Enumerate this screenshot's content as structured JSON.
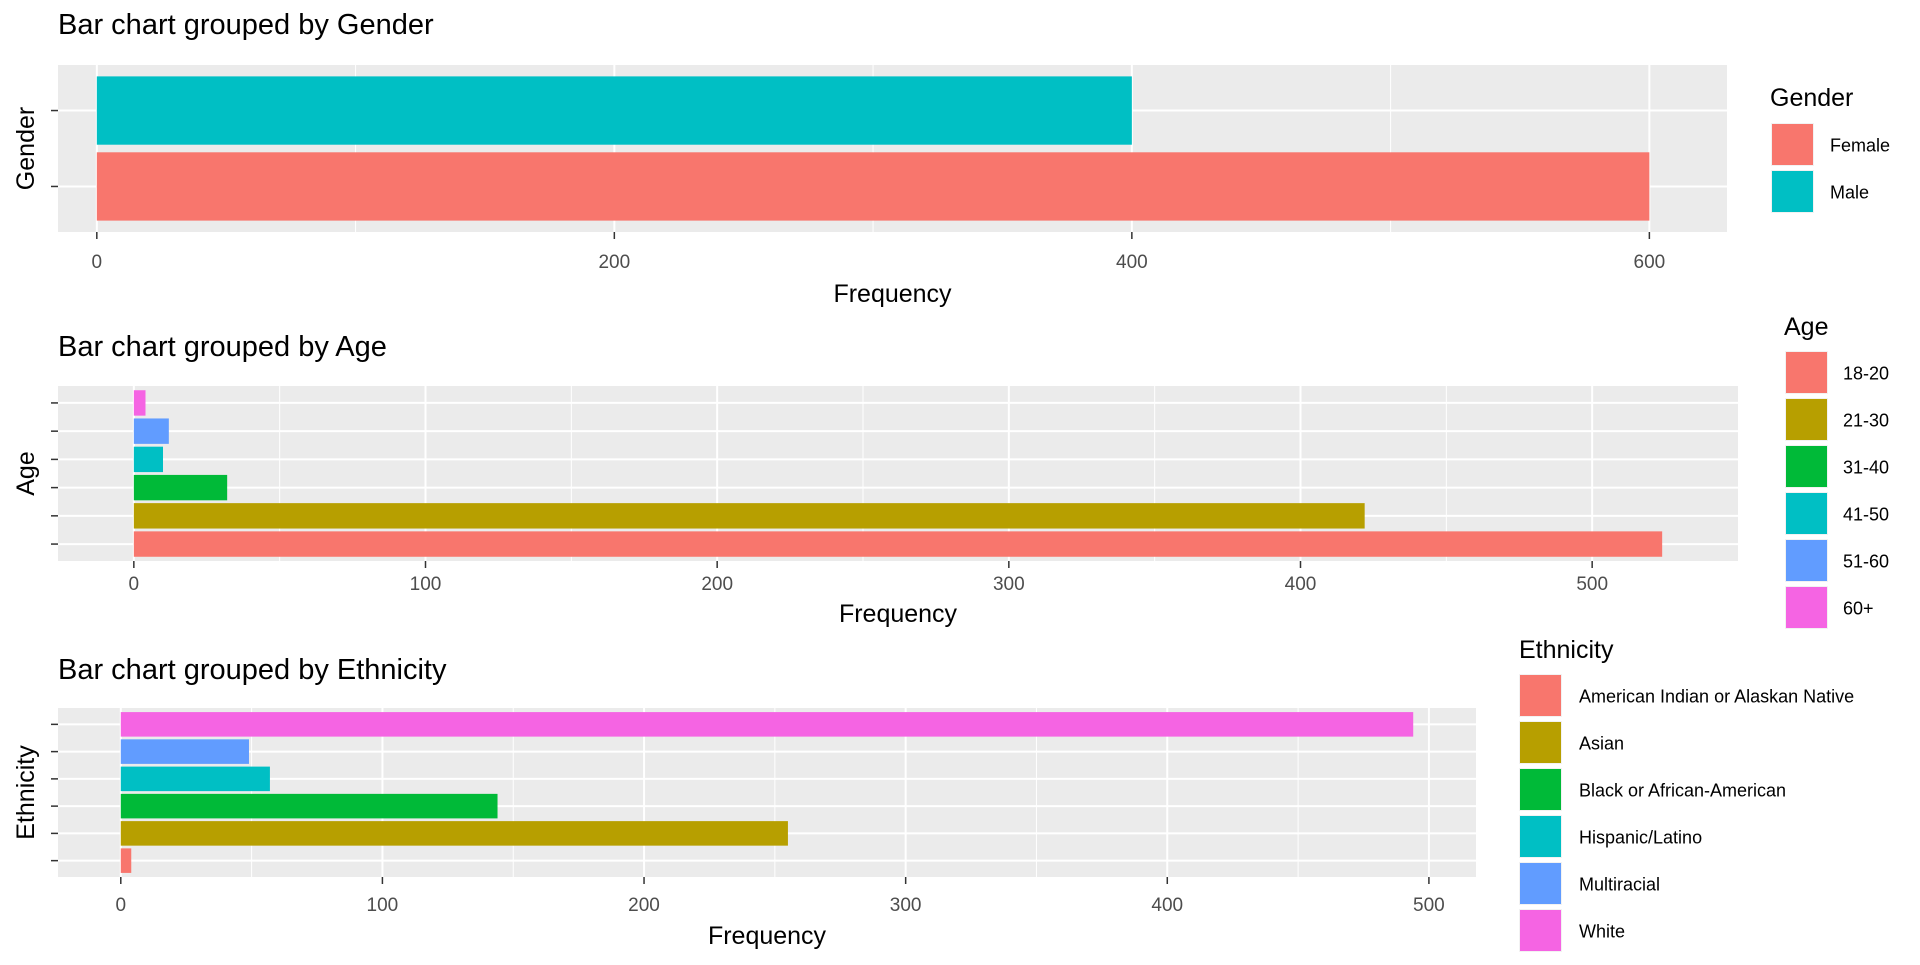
{
  "chart_data": [
    {
      "type": "bar",
      "orientation": "horizontal",
      "title": "Bar chart grouped by Gender",
      "xlabel": "Frequency",
      "ylabel": "Gender",
      "xlim": [
        -15,
        630
      ],
      "xticks": [
        0,
        200,
        400,
        600
      ],
      "grid": true,
      "legend": {
        "title": "Gender",
        "position": "right"
      },
      "categories": [
        "Female",
        "Male"
      ],
      "values": [
        600,
        400
      ],
      "colors": [
        "#F8766D",
        "#00BFC4"
      ]
    },
    {
      "type": "bar",
      "orientation": "horizontal",
      "title": "Bar chart grouped by Age",
      "xlabel": "Frequency",
      "ylabel": "Age",
      "xlim": [
        -26,
        550
      ],
      "xticks": [
        0,
        100,
        200,
        300,
        400,
        500
      ],
      "grid": true,
      "legend": {
        "title": "Age",
        "position": "right"
      },
      "categories": [
        "18-20",
        "21-30",
        "31-40",
        "41-50",
        "51-60",
        "60+"
      ],
      "values": [
        524,
        422,
        32,
        10,
        12,
        4
      ],
      "colors": [
        "#F8766D",
        "#B79F00",
        "#00BA38",
        "#00BFC4",
        "#619CFF",
        "#F564E3"
      ]
    },
    {
      "type": "bar",
      "orientation": "horizontal",
      "title": "Bar chart grouped by Ethnicity",
      "xlabel": "Frequency",
      "ylabel": "Ethnicity",
      "xlim": [
        -24,
        518
      ],
      "xticks": [
        0,
        100,
        200,
        300,
        400,
        500
      ],
      "grid": true,
      "legend": {
        "title": "Ethnicity",
        "position": "right"
      },
      "categories": [
        "American Indian or Alaskan Native",
        "Asian",
        "Black or African-American",
        "Hispanic/Latino",
        "Multiracial",
        "White"
      ],
      "values": [
        4,
        255,
        144,
        57,
        49,
        494
      ],
      "colors": [
        "#F8766D",
        "#B79F00",
        "#00BA38",
        "#00BFC4",
        "#619CFF",
        "#F564E3"
      ]
    }
  ]
}
